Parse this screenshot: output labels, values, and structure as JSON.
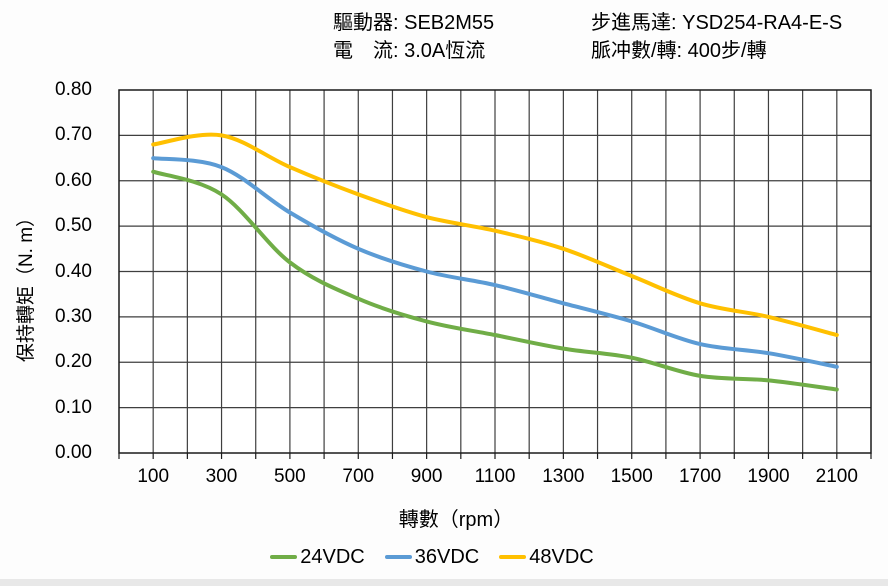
{
  "header": {
    "driver_line": "驅動器: SEB2M55",
    "current_line": "電　流: 3.0A恆流",
    "motor_line": "步進馬達: YSD254-RA4-E-S",
    "pulse_line": "脈冲數/轉: 400步/轉"
  },
  "chart_data": {
    "type": "line",
    "x": [
      100,
      300,
      500,
      700,
      900,
      1100,
      1300,
      1500,
      1700,
      1900,
      2100
    ],
    "series": [
      {
        "name": "24VDC",
        "color": "#70AD47",
        "values": [
          0.62,
          0.57,
          0.42,
          0.34,
          0.29,
          0.26,
          0.23,
          0.21,
          0.17,
          0.16,
          0.14
        ]
      },
      {
        "name": "36VDC",
        "color": "#5B9BD5",
        "values": [
          0.65,
          0.63,
          0.53,
          0.45,
          0.4,
          0.37,
          0.33,
          0.29,
          0.24,
          0.22,
          0.19
        ]
      },
      {
        "name": "48VDC",
        "color": "#FFC000",
        "values": [
          0.68,
          0.7,
          0.63,
          0.57,
          0.52,
          0.49,
          0.45,
          0.39,
          0.33,
          0.3,
          0.26
        ]
      }
    ],
    "title": "",
    "xlabel": "轉數（rpm）",
    "ylabel": "保持轉矩（N. m）",
    "xlim": [
      0,
      2200
    ],
    "ylim": [
      0,
      0.8
    ],
    "x_grid_step": 100,
    "y_grid_step": 0.1,
    "x_label_ticks": [
      100,
      300,
      500,
      700,
      900,
      1100,
      1300,
      1500,
      1700,
      1900,
      2100
    ],
    "grid": true,
    "legend_position": "bottom",
    "colors": {
      "grid_line": "#3f3f3f",
      "border_line": "#1a1a1a",
      "plot_background": "#ffffff",
      "text": "#000000"
    }
  }
}
